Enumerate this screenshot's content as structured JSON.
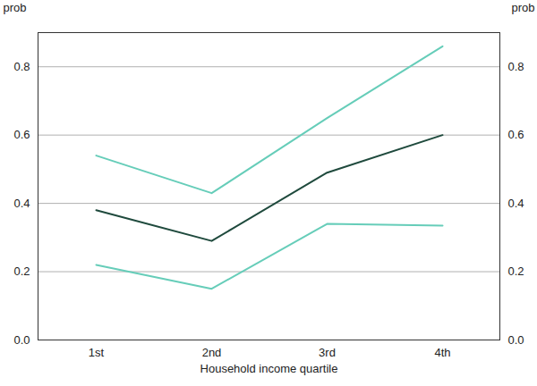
{
  "chart_data": {
    "type": "line",
    "xlabel": "Household income quartile",
    "ylabel": "prob",
    "categories": [
      "1st",
      "2nd",
      "3rd",
      "4th"
    ],
    "series": [
      {
        "color": "#66cdb9",
        "values": [
          0.54,
          0.43,
          0.65,
          0.86
        ]
      },
      {
        "color": "#1f4a3d",
        "values": [
          0.38,
          0.29,
          0.49,
          0.6
        ]
      },
      {
        "color": "#66cdb9",
        "values": [
          0.22,
          0.15,
          0.34,
          0.335
        ]
      }
    ],
    "ylim": [
      0,
      0.9
    ],
    "yticks": [
      {
        "value": 0,
        "label": "0.0"
      },
      {
        "value": 0.2,
        "label": "0.2"
      },
      {
        "value": 0.4,
        "label": "0.4"
      },
      {
        "value": 0.6,
        "label": "0.6"
      },
      {
        "value": 0.8,
        "label": "0.8"
      }
    ],
    "grid": true
  }
}
